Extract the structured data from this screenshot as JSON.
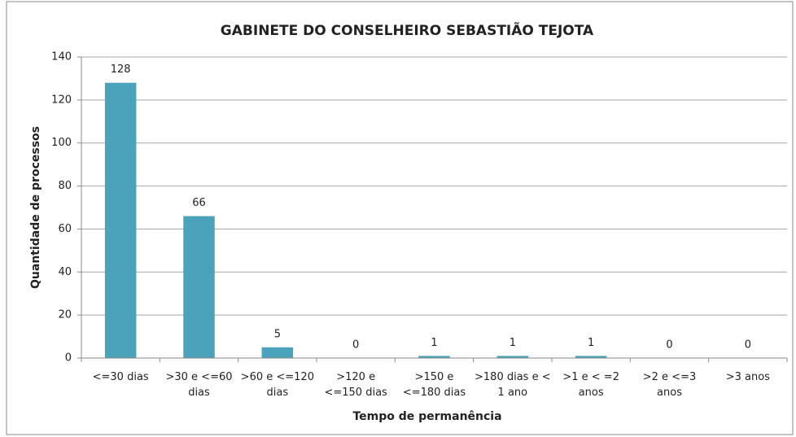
{
  "chart_data": {
    "type": "bar",
    "title": "GABINETE DO CONSELHEIRO SEBASTIÃO TEJOTA",
    "x_label": "Tempo de permanência",
    "y_label": "Quantidade de processos",
    "categories": [
      "<=30 dias",
      ">30 e <=60\ndias",
      ">60 e <=120\ndias",
      ">120 e\n<=150 dias",
      ">150 e\n<=180 dias",
      ">180 dias e <\n1 ano",
      ">1 e < =2\nanos",
      ">2 e <=3\nanos",
      ">3 anos"
    ],
    "values": [
      128,
      66,
      5,
      0,
      1,
      1,
      1,
      0,
      0
    ],
    "color": "#4aa3ba",
    "ylim": [
      0,
      140
    ],
    "yticks": [
      0,
      20,
      40,
      60,
      80,
      100,
      120,
      140
    ],
    "grid": true
  }
}
